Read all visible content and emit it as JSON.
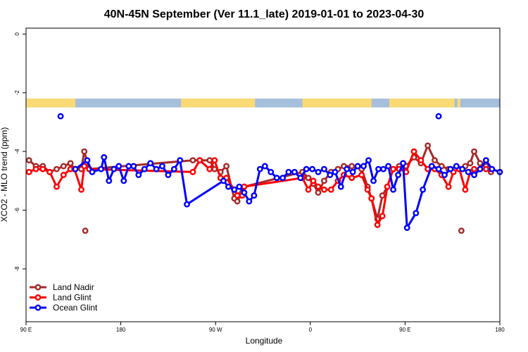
{
  "chart_data": {
    "type": "line",
    "title": "40N-45N September (Ver 11.1_late)   2019-01-01 to 2023-04-30",
    "xlabel": "Longitude",
    "ylabel": "XCO2 - MLO trend (ppm)",
    "xlim": [
      0,
      480
    ],
    "ylim": [
      -9.8,
      0.2
    ],
    "x_ticks": [
      {
        "value": 0,
        "label": "90 E"
      },
      {
        "value": 96,
        "label": "180"
      },
      {
        "value": 192,
        "label": "90 W"
      },
      {
        "value": 288,
        "label": "0"
      },
      {
        "value": 384,
        "label": "90 E"
      },
      {
        "value": 480,
        "label": "180"
      }
    ],
    "y_ticks": [
      {
        "value": 0,
        "label": "0"
      },
      {
        "value": -2,
        "label": "-2"
      },
      {
        "value": -4,
        "label": "-4"
      },
      {
        "value": -6,
        "label": "-6"
      },
      {
        "value": -8,
        "label": "-8"
      }
    ],
    "grid": false,
    "legend_position": "bottom-left",
    "surface_band": {
      "y_range": [
        -2.5,
        -2.2
      ],
      "land_color": "#fada75",
      "ocean_color": "#a5bfdc",
      "land_x_ranges": [
        [
          0,
          50
        ],
        [
          157,
          232
        ],
        [
          280,
          350
        ],
        [
          368,
          434
        ],
        [
          437,
          440
        ]
      ]
    },
    "series": [
      {
        "name": "Land Nadir",
        "color": "#a52a2a",
        "x": [
          3,
          10,
          17,
          24,
          31,
          38,
          45,
          49,
          56,
          59,
          64,
          169,
          176,
          186,
          191,
          197,
          203,
          211,
          215,
          214,
          219,
          221,
          280,
          286,
          291,
          296,
          302,
          309,
          316,
          322,
          330,
          340,
          346,
          350,
          356,
          361,
          366,
          372,
          378,
          385,
          393,
          400,
          407,
          414,
          421,
          428,
          433,
          439,
          445,
          450,
          454,
          460,
          466,
          471
        ],
        "y": [
          -4.3,
          -4.5,
          -4.5,
          -4.7,
          -4.6,
          -4.5,
          -4.4,
          -4.6,
          -4.6,
          -4.0,
          -4.6,
          -4.3,
          -4.3,
          -4.3,
          -4.6,
          -4.7,
          -4.5,
          -5.6,
          -5.5,
          -5.7,
          -5.4,
          -5.2,
          -4.7,
          -4.9,
          -5.1,
          -5.4,
          -5.0,
          -4.7,
          -4.6,
          -4.5,
          -4.5,
          -4.6,
          -5.2,
          -5.6,
          -6.3,
          -5.5,
          -5.2,
          -4.6,
          -4.5,
          -4.5,
          -4.2,
          -4.4,
          -3.8,
          -4.3,
          -4.5,
          -4.6,
          -4.7,
          -4.6,
          -4.5,
          -4.4,
          -4.0,
          -4.4,
          -4.5,
          -4.7
        ]
      },
      {
        "name": "Land Glint",
        "color": "#ff0000",
        "x": [
          3,
          10,
          17,
          24,
          31,
          38,
          45,
          49,
          56,
          59,
          64,
          169,
          176,
          186,
          191,
          197,
          203,
          211,
          215,
          214,
          219,
          221,
          280,
          286,
          291,
          296,
          302,
          309,
          316,
          322,
          330,
          340,
          346,
          350,
          356,
          361,
          366,
          372,
          378,
          385,
          393,
          400,
          407,
          414,
          421,
          428,
          433,
          439,
          445,
          450,
          454,
          460,
          466,
          471
        ],
        "y": [
          -4.7,
          -4.6,
          -4.6,
          -4.7,
          -5.2,
          -4.8,
          -4.6,
          -4.6,
          -5.3,
          -4.5,
          -4.6,
          -4.7,
          -4.3,
          -4.6,
          -4.3,
          -4.9,
          -4.9,
          -5.3,
          -5.5,
          -5.5,
          -5.5,
          -5.2,
          -4.9,
          -5.3,
          -5.0,
          -5.2,
          -5.3,
          -5.3,
          -5.0,
          -4.8,
          -4.9,
          -4.8,
          -5.3,
          -5.6,
          -6.5,
          -6.2,
          -5.2,
          -4.6,
          -4.6,
          -4.7,
          -4.0,
          -4.3,
          -4.6,
          -4.6,
          -4.8,
          -5.2,
          -4.7,
          -4.6,
          -5.3,
          -4.7,
          -4.6,
          -4.6,
          -4.6,
          -4.6
        ]
      },
      {
        "name": "Ocean Glint",
        "color": "#0000ff",
        "x": [
          50,
          62,
          67,
          76,
          79,
          84,
          89,
          94,
          99,
          104,
          109,
          114,
          120,
          126,
          132,
          138,
          144,
          150,
          156,
          163,
          200,
          205,
          211,
          216,
          221,
          226,
          231,
          237,
          242,
          248,
          254,
          260,
          266,
          272,
          278,
          284,
          290,
          296,
          302,
          308,
          313,
          319,
          325,
          331,
          336,
          342,
          347,
          352,
          357,
          362,
          367,
          372,
          377,
          382,
          386,
          395,
          402,
          411,
          418,
          424,
          430,
          436,
          442,
          448,
          454,
          460,
          466,
          472,
          480
        ],
        "y": [
          -4.6,
          -4.3,
          -4.7,
          -4.6,
          -4.2,
          -5.0,
          -4.6,
          -4.5,
          -5.0,
          -4.5,
          -4.5,
          -4.8,
          -4.6,
          -4.4,
          -4.6,
          -4.5,
          -4.8,
          -4.6,
          -4.3,
          -5.8,
          -5.0,
          -5.2,
          -5.3,
          -5.2,
          -5.4,
          -5.7,
          -5.5,
          -4.6,
          -4.5,
          -4.7,
          -4.9,
          -4.9,
          -4.7,
          -4.7,
          -4.9,
          -4.6,
          -4.6,
          -4.7,
          -4.6,
          -4.8,
          -4.7,
          -5.2,
          -4.6,
          -4.7,
          -4.5,
          -4.5,
          -4.3,
          -5.0,
          -4.6,
          -4.6,
          -4.5,
          -5.3,
          -4.8,
          -4.4,
          -6.6,
          -6.1,
          -5.3,
          -4.5,
          -4.6,
          -4.8,
          -4.6,
          -4.5,
          -4.6,
          -4.7,
          -4.8,
          -4.6,
          -4.3,
          -4.6,
          -4.7
        ]
      }
    ],
    "outlier_points": [
      {
        "series": "Ocean Glint",
        "x": 35,
        "y": -2.8
      },
      {
        "series": "Ocean Glint",
        "x": 418,
        "y": -2.8
      },
      {
        "series": "Land Nadir",
        "x": 60,
        "y": -6.7
      },
      {
        "series": "Land Nadir",
        "x": 441,
        "y": -6.7
      }
    ]
  }
}
